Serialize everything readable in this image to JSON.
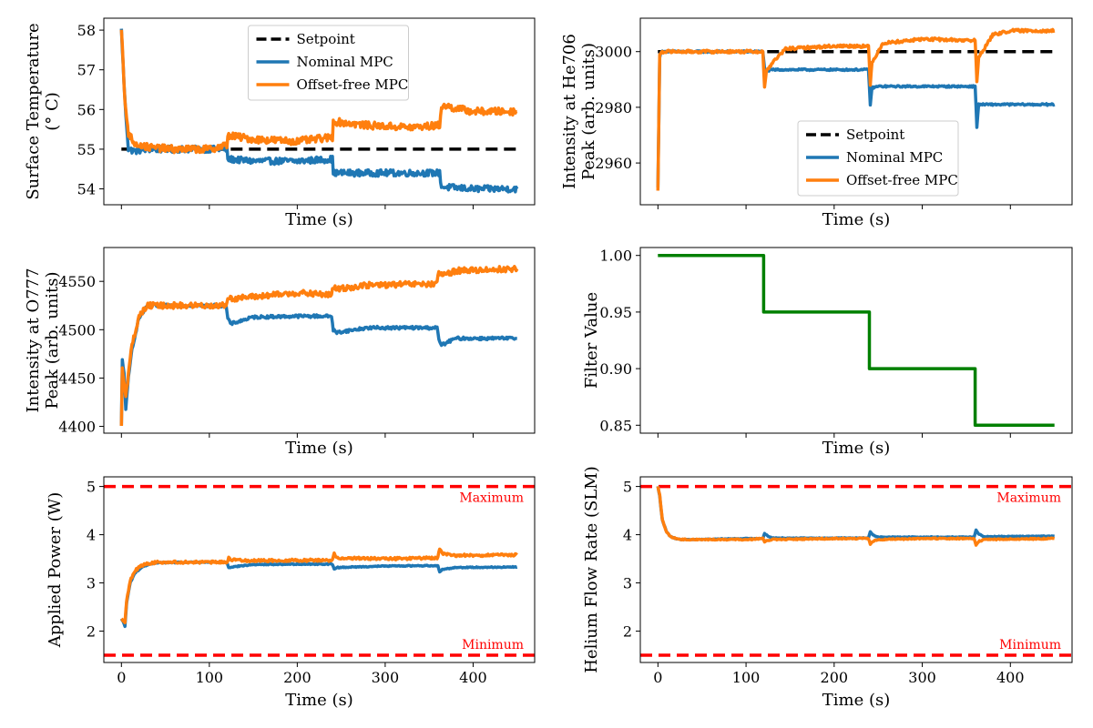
{
  "chart_data": [
    {
      "id": "surface_temp",
      "type": "line",
      "xlabel": "Time (s)",
      "ylabel": [
        "Surface Temperature",
        "(° C)"
      ],
      "xlim": [
        -20,
        470
      ],
      "ylim": [
        53.6,
        58.3
      ],
      "yticks": [
        54,
        55,
        56,
        57,
        58
      ],
      "ytick_labels": [
        "54",
        "55",
        "56",
        "57",
        "58"
      ],
      "xticks": [
        0,
        100,
        200,
        300,
        400
      ],
      "xtick_labels": [],
      "legend": {
        "position": "upper-center",
        "entries": [
          "Setpoint",
          "Nominal MPC",
          "Offset-free MPC"
        ]
      },
      "series": [
        {
          "name": "Setpoint",
          "color": "#000000",
          "dashed": true,
          "x": [
            0,
            450
          ],
          "y": [
            55,
            55
          ]
        },
        {
          "name": "Nominal MPC",
          "color": "#1f77b4",
          "x": [
            0,
            4,
            8,
            15,
            30,
            60,
            100,
            120,
            121,
            150,
            200,
            240,
            241,
            280,
            330,
            362,
            364,
            400,
            450
          ],
          "y": [
            58.0,
            56.2,
            55.0,
            54.95,
            55.0,
            55.0,
            55.0,
            55.0,
            54.75,
            54.7,
            54.7,
            54.75,
            54.4,
            54.4,
            54.4,
            54.4,
            54.05,
            54.0,
            54.0
          ],
          "noise": 0.08
        },
        {
          "name": "Offset-free MPC",
          "color": "#ff7f0e",
          "x": [
            0,
            4,
            8,
            15,
            30,
            60,
            100,
            120,
            121,
            150,
            200,
            240,
            241,
            280,
            330,
            362,
            364,
            400,
            450
          ],
          "y": [
            58.0,
            56.2,
            55.4,
            55.15,
            55.05,
            55.0,
            55.0,
            55.1,
            55.35,
            55.25,
            55.2,
            55.3,
            55.7,
            55.6,
            55.55,
            55.6,
            56.1,
            55.95,
            55.95
          ],
          "noise": 0.09
        }
      ]
    },
    {
      "id": "he706",
      "type": "line",
      "xlabel": "Time (s)",
      "ylabel": [
        "Intensity at He706",
        "Peak (arb. units)"
      ],
      "xlim": [
        -20,
        470
      ],
      "ylim": [
        2945,
        3012
      ],
      "yticks": [
        2960,
        2980,
        3000
      ],
      "ytick_labels": [
        "2960",
        "2980",
        "3000"
      ],
      "xticks": [
        0,
        100,
        200,
        300,
        400
      ],
      "xtick_labels": [],
      "legend": {
        "position": "lower-center",
        "entries": [
          "Setpoint",
          "Nominal MPC",
          "Offset-free MPC"
        ]
      },
      "series": [
        {
          "name": "Setpoint",
          "color": "#000000",
          "dashed": true,
          "x": [
            0,
            450
          ],
          "y": [
            3000,
            3000
          ]
        },
        {
          "name": "Nominal MPC",
          "color": "#1f77b4",
          "x": [
            0,
            2,
            4,
            60,
            119,
            121,
            123,
            130,
            200,
            239,
            241,
            243,
            250,
            300,
            360,
            362,
            364,
            372,
            400,
            450
          ],
          "y": [
            2951,
            2998,
            3000,
            3000,
            3000,
            2994,
            2993,
            2993.5,
            2993.5,
            2993.5,
            2981,
            2987,
            2987.5,
            2987.5,
            2987.5,
            2973,
            2981,
            2981,
            2981,
            2981
          ],
          "noise": 0.3
        },
        {
          "name": "Offset-free MPC",
          "color": "#ff7f0e",
          "x": [
            0,
            2,
            4,
            60,
            119,
            121,
            123,
            130,
            145,
            200,
            239,
            241,
            243,
            255,
            300,
            360,
            362,
            364,
            380,
            400,
            450
          ],
          "y": [
            2950,
            2999,
            3000,
            3000,
            3000,
            2987,
            2993,
            2996,
            3001,
            3002,
            3002,
            2988,
            2996,
            3003,
            3004.5,
            3004,
            2989,
            2998,
            3006,
            3007.5,
            3007.5
          ],
          "noise": 0.5
        }
      ]
    },
    {
      "id": "o777",
      "type": "line",
      "xlabel": "Time (s)",
      "ylabel": [
        "Intensity at O777",
        "Peak (arb. units)"
      ],
      "xlim": [
        -20,
        470
      ],
      "ylim": [
        4393,
        4585
      ],
      "yticks": [
        4400,
        4450,
        4500,
        4550
      ],
      "ytick_labels": [
        "4400",
        "4450",
        "4500",
        "4550"
      ],
      "xticks": [
        0,
        100,
        200,
        300,
        400
      ],
      "xtick_labels": [],
      "series": [
        {
          "name": "Nominal MPC",
          "color": "#1f77b4",
          "x": [
            0,
            1,
            3,
            5,
            8,
            12,
            20,
            30,
            60,
            119,
            121,
            124,
            150,
            200,
            239,
            241,
            244,
            280,
            330,
            359,
            361,
            364,
            380,
            450
          ],
          "y": [
            4400,
            4468,
            4455,
            4418,
            4450,
            4480,
            4512,
            4525,
            4525,
            4525,
            4512,
            4506,
            4513,
            4514,
            4514,
            4500,
            4497,
            4502,
            4502,
            4502,
            4490,
            4484,
            4491,
            4491
          ],
          "noise": 1.5
        },
        {
          "name": "Offset-free MPC",
          "color": "#ff7f0e",
          "x": [
            0,
            1,
            3,
            5,
            8,
            12,
            20,
            30,
            60,
            119,
            121,
            124,
            150,
            200,
            239,
            241,
            244,
            280,
            330,
            359,
            361,
            364,
            380,
            450
          ],
          "y": [
            4400,
            4462,
            4448,
            4430,
            4455,
            4484,
            4514,
            4525,
            4525,
            4525,
            4534,
            4532,
            4534,
            4538,
            4536,
            4544,
            4542,
            4546,
            4547,
            4547,
            4560,
            4556,
            4561,
            4563
          ],
          "noise": 3
        }
      ]
    },
    {
      "id": "filter",
      "type": "line",
      "xlabel": "Time (s)",
      "ylabel": [
        "Filter Value"
      ],
      "xlim": [
        -20,
        470
      ],
      "ylim": [
        0.843,
        1.007
      ],
      "yticks": [
        0.85,
        0.9,
        0.95,
        1.0
      ],
      "ytick_labels": [
        "0.85",
        "0.90",
        "0.95",
        "1.00"
      ],
      "xticks": [
        0,
        100,
        200,
        300,
        400
      ],
      "xtick_labels": [],
      "series": [
        {
          "name": "Filter",
          "color": "#008000",
          "x": [
            0,
            120,
            120,
            240,
            240,
            360,
            360,
            450
          ],
          "y": [
            1.0,
            1.0,
            0.95,
            0.95,
            0.9,
            0.9,
            0.85,
            0.85
          ]
        }
      ]
    },
    {
      "id": "power",
      "type": "line",
      "xlabel": "Time (s)",
      "ylabel": [
        "Applied Power (W)"
      ],
      "xlim": [
        -20,
        470
      ],
      "ylim": [
        1.35,
        5.2
      ],
      "yticks": [
        2,
        3,
        4,
        5
      ],
      "ytick_labels": [
        "2",
        "3",
        "4",
        "5"
      ],
      "xticks": [
        0,
        100,
        200,
        300,
        400
      ],
      "xtick_labels": [
        "0",
        "100",
        "200",
        "300",
        "400"
      ],
      "limits": [
        {
          "label": "Maximum",
          "value": 5,
          "color": "#ff0000"
        },
        {
          "label": "Minimum",
          "value": 1.5,
          "color": "#ff0000"
        }
      ],
      "series": [
        {
          "name": "Nominal MPC",
          "color": "#1f77b4",
          "x": [
            0,
            2,
            4,
            6,
            10,
            15,
            25,
            40,
            100,
            120,
            122,
            125,
            150,
            200,
            240,
            242,
            245,
            300,
            360,
            362,
            365,
            380,
            450
          ],
          "y": [
            2.25,
            2.2,
            2.1,
            2.6,
            3.0,
            3.2,
            3.35,
            3.42,
            3.43,
            3.43,
            3.32,
            3.33,
            3.38,
            3.39,
            3.39,
            3.28,
            3.32,
            3.35,
            3.36,
            3.22,
            3.28,
            3.32,
            3.33
          ],
          "noise": 0.01
        },
        {
          "name": "Offset-free MPC",
          "color": "#ff7f0e",
          "x": [
            0,
            2,
            4,
            6,
            10,
            15,
            25,
            40,
            100,
            120,
            122,
            125,
            150,
            200,
            240,
            242,
            245,
            300,
            360,
            362,
            365,
            380,
            450
          ],
          "y": [
            2.25,
            2.22,
            2.15,
            2.65,
            3.05,
            3.25,
            3.38,
            3.43,
            3.43,
            3.43,
            3.52,
            3.48,
            3.46,
            3.47,
            3.47,
            3.6,
            3.52,
            3.5,
            3.52,
            3.72,
            3.6,
            3.57,
            3.58
          ],
          "noise": 0.025
        }
      ]
    },
    {
      "id": "helium",
      "type": "line",
      "xlabel": "Time (s)",
      "ylabel": [
        "Helium Flow Rate (SLM)"
      ],
      "xlim": [
        -20,
        470
      ],
      "ylim": [
        1.35,
        5.2
      ],
      "yticks": [
        2,
        3,
        4,
        5
      ],
      "ytick_labels": [
        "2",
        "3",
        "4",
        "5"
      ],
      "xticks": [
        0,
        100,
        200,
        300,
        400
      ],
      "xtick_labels": [
        "0",
        "100",
        "200",
        "300",
        "400"
      ],
      "limits": [
        {
          "label": "Maximum",
          "value": 5,
          "color": "#ff0000"
        },
        {
          "label": "Minimum",
          "value": 1.5,
          "color": "#ff0000"
        }
      ],
      "series": [
        {
          "name": "Nominal MPC",
          "color": "#1f77b4",
          "x": [
            0,
            2,
            5,
            10,
            15,
            25,
            40,
            100,
            119,
            121,
            124,
            130,
            200,
            239,
            241,
            244,
            250,
            300,
            359,
            361,
            364,
            370,
            450
          ],
          "y": [
            5.0,
            4.8,
            4.3,
            4.05,
            3.95,
            3.9,
            3.9,
            3.92,
            3.92,
            4.03,
            3.98,
            3.93,
            3.93,
            3.93,
            4.06,
            4.0,
            3.95,
            3.95,
            3.95,
            4.1,
            4.02,
            3.96,
            3.97
          ],
          "noise": 0.008
        },
        {
          "name": "Offset-free MPC",
          "color": "#ff7f0e",
          "x": [
            0,
            2,
            5,
            10,
            15,
            25,
            40,
            100,
            119,
            121,
            124,
            130,
            200,
            239,
            241,
            244,
            250,
            300,
            359,
            361,
            364,
            370,
            450
          ],
          "y": [
            5.0,
            4.82,
            4.3,
            4.05,
            3.95,
            3.9,
            3.9,
            3.9,
            3.92,
            3.85,
            3.88,
            3.9,
            3.92,
            3.92,
            3.8,
            3.86,
            3.9,
            3.92,
            3.92,
            3.78,
            3.86,
            3.9,
            3.92
          ],
          "noise": 0.012
        }
      ]
    }
  ]
}
